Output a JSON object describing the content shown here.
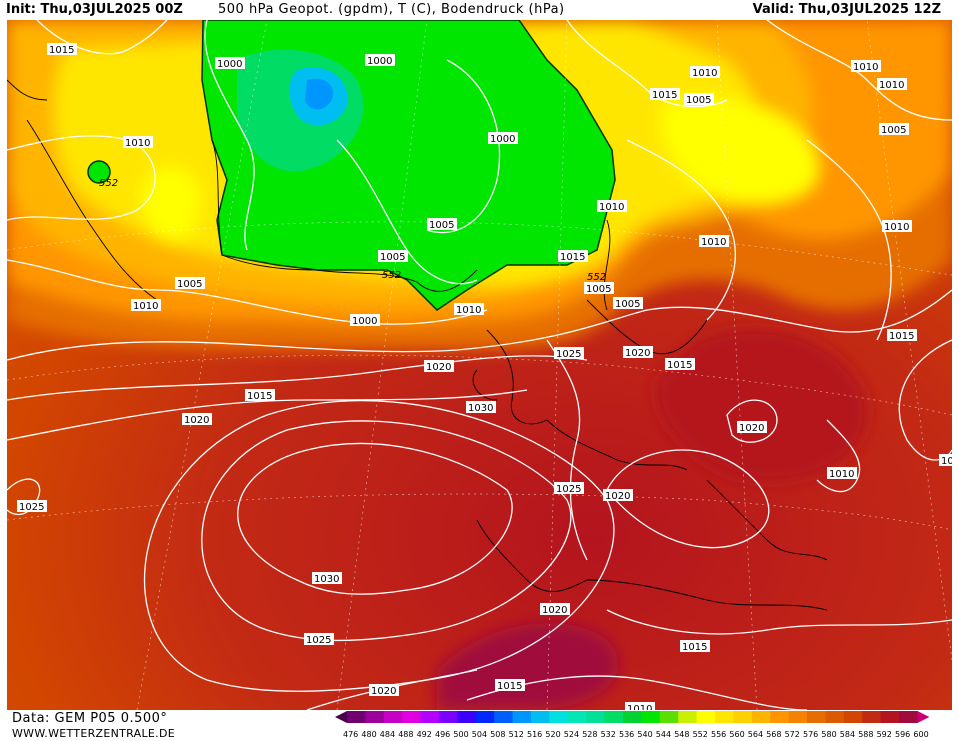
{
  "header": {
    "init": "Init: Thu,03JUL2025 00Z",
    "title": "500 hPa Geopot. (gpdm), T (C), Bodendruck (hPa)",
    "valid": "Valid: Thu,03JUL2025 12Z"
  },
  "footer": {
    "data": "Data: GEM P05 0.500°",
    "site": "WWW.WETTERZENTRALE.DE"
  },
  "legend": {
    "values": [
      "476",
      "480",
      "484",
      "488",
      "492",
      "496",
      "500",
      "504",
      "508",
      "512",
      "516",
      "520",
      "524",
      "528",
      "532",
      "536",
      "540",
      "544",
      "548",
      "552",
      "556",
      "560",
      "564",
      "568",
      "572",
      "576",
      "580",
      "584",
      "588",
      "592",
      "596",
      "600"
    ],
    "colors": [
      "#4a004a",
      "#700070",
      "#9b009b",
      "#c600c6",
      "#e000e0",
      "#b400ff",
      "#7a00ff",
      "#3c00ff",
      "#0028ff",
      "#0060ff",
      "#0096ff",
      "#00bff0",
      "#00e0e0",
      "#00e6b4",
      "#00e096",
      "#00dc64",
      "#00d232",
      "#00e600",
      "#5ae000",
      "#c8f000",
      "#ffff00",
      "#ffe600",
      "#ffd000",
      "#ffb400",
      "#ff9600",
      "#f58200",
      "#e66e00",
      "#dc5a00",
      "#d24600",
      "#c32a14",
      "#b4141e",
      "#a00a3c",
      "#c80078"
    ]
  },
  "pressure_labels": [
    {
      "t": "1015",
      "cls": "a"
    },
    {
      "t": "1010",
      "cls": "b"
    },
    {
      "t": "1005",
      "cls": "c"
    },
    {
      "t": "1010",
      "cls": "d"
    },
    {
      "t": "1000",
      "cls": "e"
    },
    {
      "t": "1000",
      "cls": "f"
    },
    {
      "t": "1000",
      "cls": "g"
    },
    {
      "t": "1005",
      "cls": "h"
    },
    {
      "t": "1005",
      "cls": "i"
    },
    {
      "t": "1010",
      "cls": "j"
    },
    {
      "t": "1015",
      "cls": "k"
    },
    {
      "t": "1005",
      "cls": "l"
    },
    {
      "t": "1010",
      "cls": "m"
    },
    {
      "t": "1010",
      "cls": "n"
    },
    {
      "t": "1015",
      "cls": "o"
    },
    {
      "t": "1005",
      "cls": "p"
    },
    {
      "t": "1010",
      "cls": "q"
    },
    {
      "t": "1010",
      "cls": "r"
    },
    {
      "t": "1010",
      "cls": "s"
    },
    {
      "t": "1005",
      "cls": "t"
    },
    {
      "t": "1010",
      "cls": "u"
    },
    {
      "t": "1005",
      "cls": "v"
    },
    {
      "t": "1010",
      "cls": "w"
    },
    {
      "t": "1010",
      "cls": "x"
    },
    {
      "t": "1000",
      "cls": "y"
    },
    {
      "t": "1020",
      "cls": "z"
    },
    {
      "t": "1025",
      "cls": "aa"
    },
    {
      "t": "1020",
      "cls": "ab"
    },
    {
      "t": "1015",
      "cls": "ac"
    },
    {
      "t": "1015",
      "cls": "ad"
    },
    {
      "t": "1020",
      "cls": "ae"
    },
    {
      "t": "1030",
      "cls": "af"
    },
    {
      "t": "1020",
      "cls": "ag"
    },
    {
      "t": "1015",
      "cls": "ah"
    },
    {
      "t": "1010",
      "cls": "ai"
    },
    {
      "t": "1025",
      "cls": "aj"
    },
    {
      "t": "1020",
      "cls": "ak"
    },
    {
      "t": "1025",
      "cls": "al"
    },
    {
      "t": "1030",
      "cls": "am"
    },
    {
      "t": "1025",
      "cls": "an"
    },
    {
      "t": "1020",
      "cls": "ao"
    },
    {
      "t": "1015",
      "cls": "ap"
    },
    {
      "t": "1020",
      "cls": "aq"
    },
    {
      "t": "1015",
      "cls": "ar"
    },
    {
      "t": "1010",
      "cls": "as"
    },
    {
      "t": "10",
      "cls": "at"
    }
  ],
  "geo_labels": [
    {
      "t": "552",
      "cls": "g1"
    },
    {
      "t": "552",
      "cls": "g2"
    },
    {
      "t": "552",
      "cls": "g3"
    }
  ]
}
